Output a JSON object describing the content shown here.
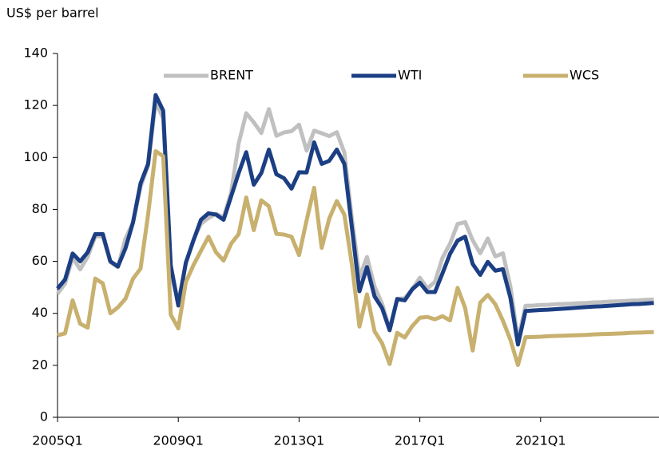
{
  "chart_data": {
    "type": "line",
    "y_axis_label": "US$ per barrel",
    "categories": [
      "2005Q1",
      null,
      null,
      null,
      null,
      null,
      null,
      null,
      null,
      null,
      null,
      null,
      null,
      null,
      null,
      null,
      "2009Q1",
      null,
      null,
      null,
      null,
      null,
      null,
      null,
      null,
      null,
      null,
      null,
      null,
      null,
      null,
      null,
      "2013Q1",
      null,
      null,
      null,
      null,
      null,
      null,
      null,
      null,
      null,
      null,
      null,
      null,
      null,
      null,
      null,
      "2017Q1",
      null,
      null,
      null,
      null,
      null,
      null,
      null,
      null,
      null,
      null,
      null,
      null,
      null,
      null,
      null,
      "2021Q1",
      null,
      null,
      null,
      null,
      null,
      null,
      null,
      null,
      null,
      null,
      null,
      null,
      null,
      null,
      null
    ],
    "series": [
      {
        "name": "BRENT",
        "color": "#c0c0c0",
        "values": [
          47.5,
          51.5,
          61.5,
          56.9,
          61.8,
          69.6,
          69.6,
          59.7,
          57.8,
          68.8,
          74.9,
          88.7,
          96.9,
          121.4,
          115,
          55.5,
          44.4,
          59.1,
          68.2,
          74.5,
          76.7,
          78.3,
          76.9,
          86.5,
          105.4,
          117,
          113.5,
          109.4,
          118.6,
          108.3,
          109.6,
          110.1,
          112.6,
          102.6,
          110.3,
          109.3,
          108.2,
          109.7,
          101.9,
          76.4,
          53.9,
          61.7,
          50.3,
          43.7,
          33.9,
          45.6,
          45.8,
          49.3,
          53.7,
          49.6,
          52.1,
          61.4,
          66.8,
          74.4,
          75.1,
          68.1,
          63.1,
          68.8,
          61.9,
          63.1,
          50.3,
          29.6,
          42.9,
          43.0,
          43.2,
          43.3,
          43.5,
          43.6,
          43.7,
          43.9,
          44.0,
          44.2,
          44.3,
          44.5,
          44.6,
          44.7,
          44.9,
          45.0,
          45.2,
          45.3
        ]
      },
      {
        "name": "WTI",
        "color": "#1c3f84",
        "values": [
          49.5,
          53,
          63,
          60,
          63.5,
          70.5,
          70.5,
          60,
          58,
          65,
          75,
          90,
          97.5,
          124,
          118,
          58.5,
          43,
          59.5,
          68,
          76,
          78.5,
          78,
          76,
          85,
          94,
          102,
          89.5,
          94,
          103,
          93.5,
          92,
          88,
          94.3,
          94.2,
          105.8,
          97.5,
          98.7,
          103,
          97.5,
          73,
          48.5,
          57.8,
          46.5,
          42,
          33.5,
          45.5,
          45,
          49.3,
          51.8,
          48.2,
          48.2,
          55.4,
          62.9,
          68,
          69.5,
          59,
          54.8,
          59.8,
          56.4,
          57,
          46,
          28,
          40.9,
          41.1,
          41.3,
          41.4,
          41.6,
          41.8,
          42.0,
          42.2,
          42.4,
          42.6,
          42.7,
          42.9,
          43.1,
          43.3,
          43.5,
          43.6,
          43.8,
          44.0
        ]
      },
      {
        "name": "WCS",
        "color": "#c8b06e",
        "values": [
          31.5,
          32.3,
          45,
          36,
          34.5,
          53.4,
          51.5,
          40,
          42.3,
          45.6,
          53.3,
          57.2,
          78,
          102.4,
          100.5,
          39.5,
          34.2,
          52,
          58.5,
          64,
          69.5,
          63.5,
          60.3,
          66.8,
          70.5,
          84.6,
          72,
          83.5,
          81.2,
          70.6,
          70.3,
          69.5,
          62.4,
          75.8,
          88.3,
          65.2,
          76.5,
          83.2,
          78,
          58.8,
          34.9,
          47.3,
          33.1,
          28.5,
          20.5,
          32.5,
          30.7,
          35.1,
          38.3,
          38.6,
          37.7,
          38.9,
          37.3,
          49.8,
          42.1,
          25.7,
          44.1,
          47.1,
          43.5,
          37.2,
          29.8,
          20.1,
          30.8,
          30.9,
          31.0,
          31.2,
          31.3,
          31.4,
          31.5,
          31.6,
          31.7,
          31.9,
          32.0,
          32.1,
          32.2,
          32.3,
          32.5,
          32.6,
          32.7,
          32.8
        ]
      }
    ],
    "ylim": [
      0,
      140
    ],
    "yticks": [
      0,
      20,
      40,
      60,
      80,
      100,
      120,
      140
    ],
    "legend": "top"
  }
}
